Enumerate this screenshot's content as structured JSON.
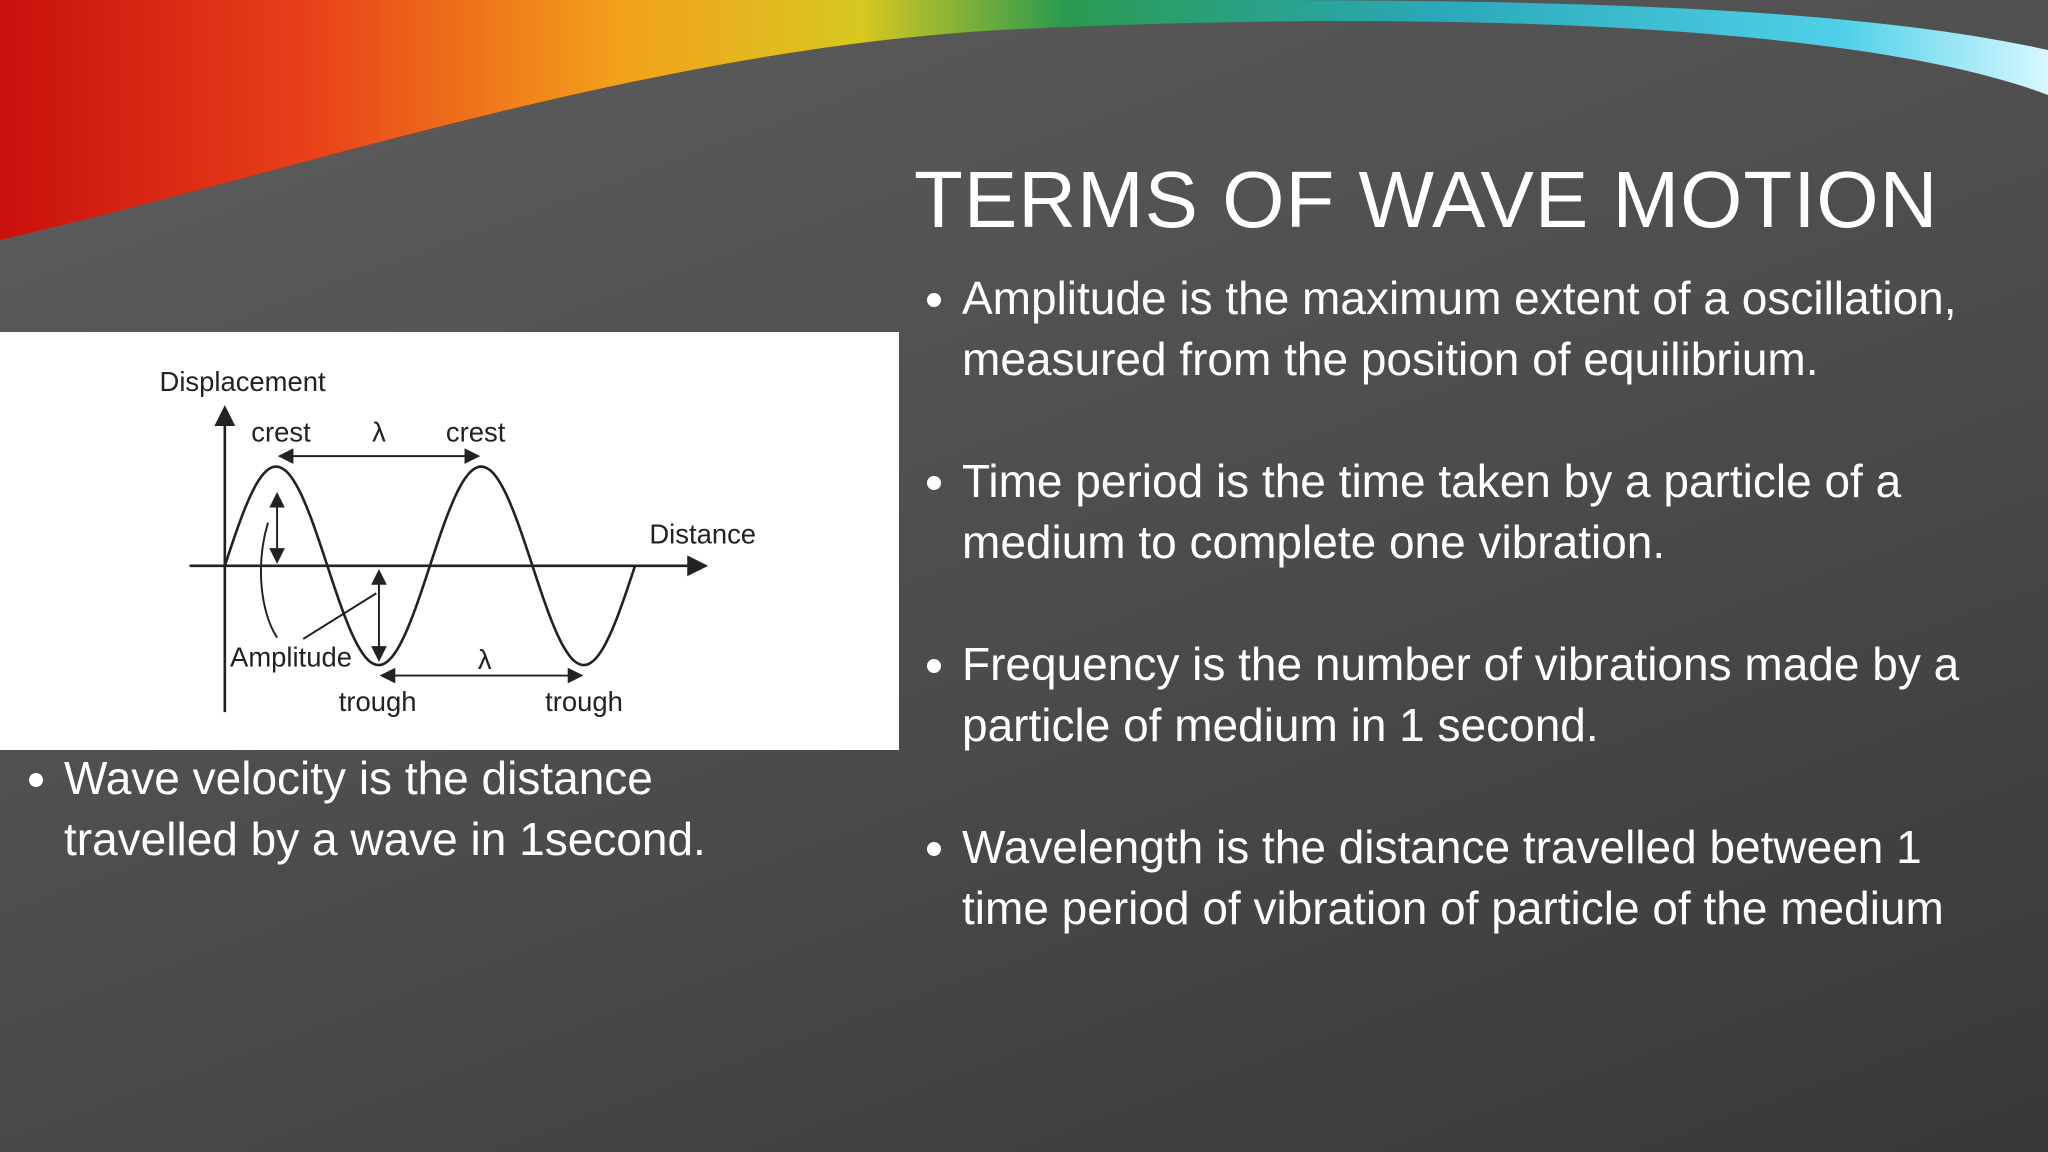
{
  "title": "TERMS OF WAVE MOTION",
  "bullets": [
    "Amplitude is the maximum extent of a oscillation, measured from the position of equilibrium.",
    "Time period is the time taken by a particle of a medium to complete one vibration.",
    "Frequency is the number of vibrations made by a particle of medium in 1 second.",
    "Wavelength is the distance travelled between 1 time period of vibration of particle of the medium"
  ],
  "left_bullet": "Wave velocity is the distance travelled by a wave in 1second.",
  "diagram": {
    "y_axis": "Displacement",
    "x_axis": "Distance",
    "crests": [
      "crest",
      "crest"
    ],
    "wavelengths": [
      "λ",
      "λ"
    ],
    "amplitude": "Amplitude",
    "troughs": [
      "trough",
      "trough"
    ]
  }
}
